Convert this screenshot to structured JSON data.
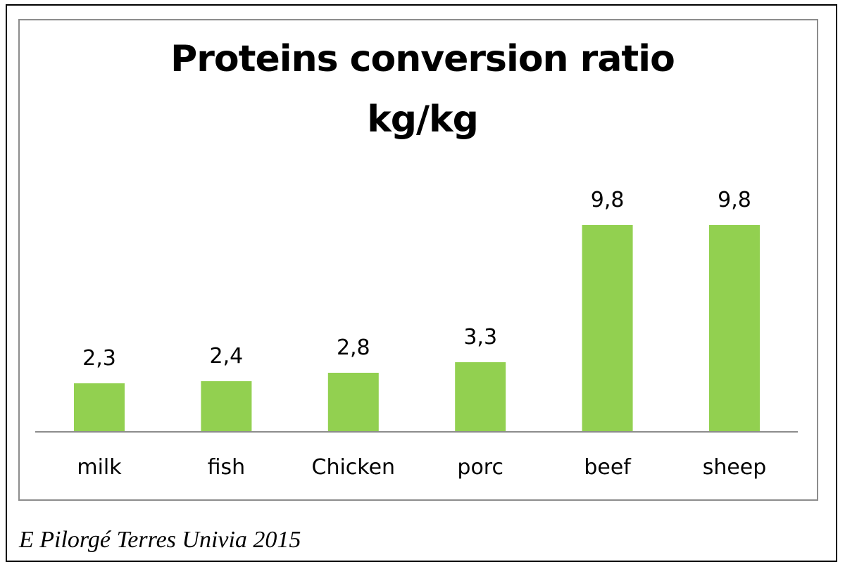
{
  "chart_data": {
    "type": "bar",
    "title": [
      "Proteins conversion ratio",
      "kg/kg"
    ],
    "categories": [
      "milk",
      "fish",
      "Chicken",
      "porc",
      "beef",
      "sheep"
    ],
    "values": [
      2.3,
      2.4,
      2.8,
      3.3,
      9.8,
      9.8
    ],
    "data_labels": [
      "2,3",
      "2,4",
      "2,8",
      "3,3",
      "9,8",
      "9,8"
    ],
    "ylim": [
      0,
      10
    ],
    "grid": false,
    "legend": "none",
    "bar_color": "#92d050",
    "axis_color": "#8c8c8c"
  },
  "credit": "E Pilorgé Terres Univia 2015"
}
